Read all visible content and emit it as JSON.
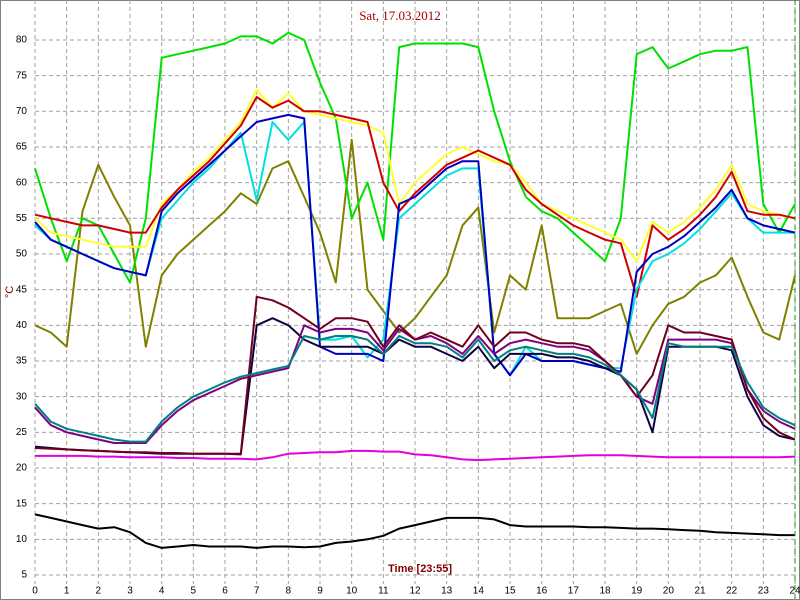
{
  "chart_data": {
    "type": "line",
    "title": "Sat, 17.03.2012",
    "xlabel": "Time [23:55]",
    "ylabel": "°C",
    "x": [
      0,
      0.5,
      1,
      1.5,
      2,
      2.5,
      3,
      3.5,
      4,
      4.5,
      5,
      5.5,
      6,
      6.5,
      7,
      7.5,
      8,
      8.5,
      9,
      9.5,
      10,
      10.5,
      11,
      11.5,
      12,
      12.5,
      13,
      13.5,
      14,
      14.5,
      15,
      15.5,
      16,
      16.5,
      17,
      17.5,
      18,
      18.5,
      19,
      19.5,
      20,
      20.5,
      21,
      21.5,
      22,
      22.5,
      23,
      23.5,
      24
    ],
    "xlim": [
      0,
      24
    ],
    "xticks": [
      0,
      1,
      2,
      3,
      4,
      5,
      6,
      7,
      8,
      9,
      10,
      11,
      12,
      13,
      14,
      15,
      16,
      17,
      18,
      19,
      20,
      21,
      22,
      23,
      24
    ],
    "ylim": [
      4.3,
      84.9
    ],
    "yticks": [
      5,
      10,
      15,
      20,
      25,
      30,
      35,
      40,
      45,
      50,
      55,
      60,
      65,
      70,
      75,
      80
    ],
    "grid": true,
    "series": [
      {
        "color": "#000000",
        "values": [
          13.5,
          13,
          12.5,
          12,
          11.5,
          11.7,
          11,
          9.5,
          8.8,
          9,
          9.2,
          9,
          9,
          9,
          8.8,
          9,
          9,
          8.9,
          9,
          9.5,
          9.7,
          10,
          10.5,
          11.5,
          12,
          12.5,
          13,
          13,
          13,
          12.8,
          12,
          11.8,
          11.8,
          11.8,
          11.8,
          11.7,
          11.7,
          11.6,
          11.5,
          11.5,
          11.4,
          11.3,
          11.2,
          11,
          10.9,
          10.8,
          10.7,
          10.6,
          10.6
        ]
      },
      {
        "color": "#e000e0",
        "values": [
          21.7,
          21.7,
          21.7,
          21.7,
          21.6,
          21.6,
          21.5,
          21.5,
          21.5,
          21.4,
          21.4,
          21.3,
          21.3,
          21.3,
          21.2,
          21.5,
          22,
          22.1,
          22.2,
          22.2,
          22.4,
          22.4,
          22.3,
          22.3,
          21.9,
          21.8,
          21.5,
          21.2,
          21.1,
          21.2,
          21.3,
          21.4,
          21.5,
          21.6,
          21.7,
          21.8,
          21.8,
          21.8,
          21.7,
          21.6,
          21.5,
          21.5,
          21.5,
          21.5,
          21.5,
          21.5,
          21.5,
          21.5,
          21.6
        ]
      },
      {
        "color": "#808000",
        "values": [
          40,
          39,
          37,
          56,
          62.5,
          58,
          54,
          37,
          47,
          50,
          52,
          54,
          56,
          58.5,
          57,
          62,
          63,
          58,
          53,
          46,
          66,
          45,
          42,
          39,
          41,
          44,
          47,
          54,
          56.5,
          39,
          47,
          45,
          54,
          41,
          41,
          41,
          42,
          43,
          36,
          40,
          43,
          44,
          46,
          47,
          49.5,
          44,
          39,
          38,
          47
        ]
      },
      {
        "color": "#00e000",
        "values": [
          62,
          55,
          49,
          55,
          54,
          50,
          46,
          55,
          77.5,
          78,
          78.5,
          79,
          79.5,
          80.5,
          80.5,
          79.5,
          81,
          80,
          74,
          69,
          55,
          60,
          52,
          79,
          79.5,
          79.5,
          79.5,
          79.5,
          79,
          70,
          63,
          58,
          56,
          55,
          53,
          51,
          49,
          55,
          78,
          79,
          76,
          77,
          78,
          78.5,
          78.5,
          79,
          57,
          53,
          57
        ]
      },
      {
        "color": "#ffff30",
        "values": [
          55,
          53,
          52.5,
          52,
          51.5,
          51,
          51,
          51,
          57,
          59,
          61.5,
          63.5,
          66,
          68.5,
          73,
          70.5,
          72.5,
          70,
          69.5,
          69,
          68.5,
          68,
          67,
          57,
          60,
          62,
          64,
          65,
          64,
          63,
          62.5,
          60,
          57,
          56,
          55,
          54,
          53,
          52,
          49,
          54.5,
          53,
          54.5,
          56.5,
          59,
          62.5,
          57,
          56,
          55.5,
          55
        ]
      },
      {
        "color": "#d00000",
        "values": [
          55.5,
          55,
          54.5,
          54,
          54,
          53.5,
          53,
          53,
          56.5,
          59,
          61,
          63,
          65.5,
          68,
          72,
          70.5,
          71.5,
          70,
          70,
          69.5,
          69,
          68.5,
          60,
          56,
          58.5,
          60.5,
          62.5,
          63.5,
          64.5,
          63.5,
          62.5,
          59,
          57,
          55.5,
          54,
          53,
          52,
          51.5,
          44,
          54,
          52,
          53.5,
          55.5,
          58,
          61.5,
          56,
          55.5,
          55.5,
          55
        ]
      },
      {
        "color": "#00e0e0",
        "values": [
          54,
          52,
          51,
          50,
          49,
          48,
          47.5,
          47,
          55,
          57.5,
          60,
          62,
          64.5,
          67,
          57.5,
          68.5,
          66,
          68.5,
          38,
          38,
          38.5,
          35.5,
          38,
          55,
          57,
          59,
          61,
          62,
          62,
          36,
          33,
          37,
          35,
          35,
          35,
          34.5,
          34,
          34,
          45,
          49,
          50,
          51.5,
          53.5,
          56,
          58.5,
          55,
          53,
          53,
          53
        ]
      },
      {
        "color": "#0000c0",
        "values": [
          54.5,
          52,
          51,
          50,
          49,
          48,
          47.5,
          47,
          56,
          58.5,
          60.5,
          62.5,
          64.5,
          66.5,
          68.5,
          69,
          69.5,
          69,
          37,
          36,
          36,
          36,
          35,
          57,
          58,
          60,
          62,
          63,
          63,
          36,
          33,
          36,
          35,
          35,
          35,
          34.5,
          34,
          33.5,
          47.5,
          50,
          51,
          52.5,
          54.5,
          56.5,
          59,
          55,
          54,
          53.5,
          53
        ]
      },
      {
        "color": "#100040",
        "values": [
          23,
          22.8,
          22.6,
          22.5,
          22.4,
          22.3,
          22.2,
          22.1,
          22,
          22,
          22,
          22,
          22,
          21.9,
          40,
          41,
          40,
          38,
          37,
          37,
          37,
          37,
          36,
          38,
          37,
          37,
          36,
          35,
          37,
          34,
          36,
          36,
          36,
          35.5,
          35.5,
          35,
          34,
          33,
          31,
          25,
          37,
          37,
          37,
          37,
          36.5,
          30,
          26,
          24.5,
          24
        ]
      },
      {
        "color": "#800080",
        "values": [
          28.5,
          26,
          25,
          24.5,
          24,
          23.5,
          23.5,
          23.5,
          26,
          28,
          29.5,
          30.5,
          31.5,
          32.5,
          33,
          33.5,
          34,
          40,
          39,
          39.5,
          39.5,
          39,
          36.5,
          39.5,
          38,
          38.5,
          37.5,
          36,
          38.5,
          36,
          37.5,
          38,
          37.5,
          37,
          37,
          36.5,
          35,
          33,
          30,
          29,
          38,
          38,
          38,
          38,
          37.5,
          31,
          28,
          26.5,
          25.5
        ]
      },
      {
        "color": "#700020",
        "values": [
          22.8,
          22.7,
          22.6,
          22.5,
          22.4,
          22.3,
          22.2,
          22.2,
          22.1,
          22.1,
          22,
          22,
          22,
          22,
          44,
          43.5,
          42.5,
          41,
          39.5,
          41,
          41,
          40.5,
          37,
          40,
          38,
          39,
          38,
          37,
          40,
          37,
          39,
          39,
          38,
          37.5,
          37.5,
          37,
          35,
          33,
          30,
          33,
          40,
          39,
          39,
          38.5,
          38,
          31,
          27,
          25,
          24
        ]
      },
      {
        "color": "#008080",
        "values": [
          29,
          26.5,
          25.5,
          25,
          24.5,
          24,
          23.7,
          23.7,
          26.5,
          28.5,
          30,
          31,
          32,
          32.8,
          33.3,
          33.8,
          34.3,
          38.5,
          38,
          38.5,
          38.5,
          38,
          36,
          38.5,
          37.5,
          37.5,
          37,
          35.5,
          38,
          35,
          36.5,
          37,
          36.5,
          36,
          36,
          35.5,
          34.5,
          33,
          31,
          27,
          37.5,
          37,
          37,
          37,
          37,
          32,
          28.5,
          27,
          26
        ]
      }
    ]
  }
}
